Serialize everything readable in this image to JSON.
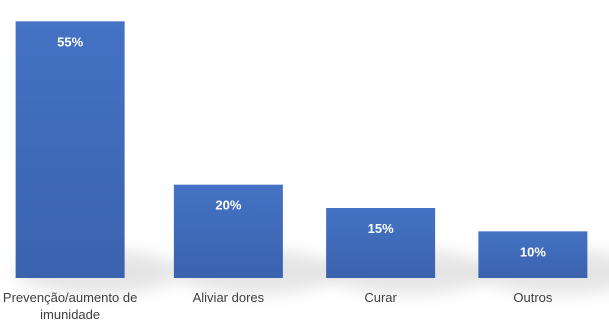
{
  "chart_data": {
    "type": "bar",
    "categories": [
      [
        "Prevenção/aumento de",
        "imunidade"
      ],
      [
        "Aliviar dores"
      ],
      [
        "Curar"
      ],
      [
        "Outros"
      ]
    ],
    "values": [
      55,
      20,
      15,
      10
    ],
    "data_labels": [
      "55%",
      "20%",
      "15%",
      "10%"
    ],
    "title": "",
    "xlabel": "",
    "ylabel": "",
    "ylim": [
      0,
      57
    ],
    "grid": false,
    "legend": "none",
    "bar_color": "#4472C4",
    "bar_color_dark": "#3A63AE",
    "label_color": "#FFFFFF",
    "category_color": "#404040"
  }
}
